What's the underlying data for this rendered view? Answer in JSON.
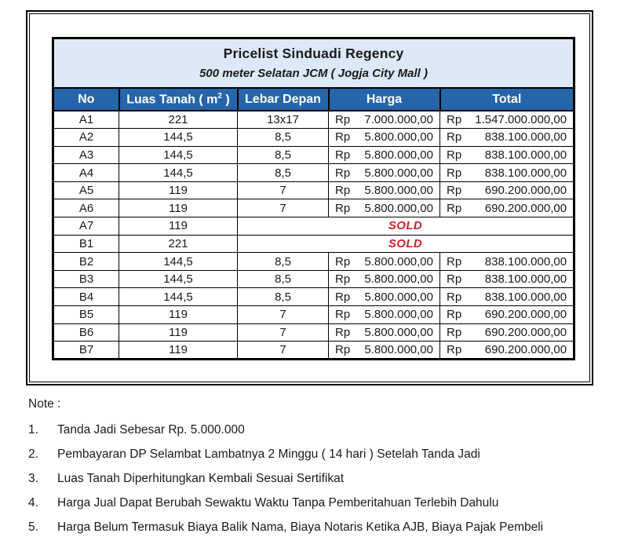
{
  "colors": {
    "header_bg": "#2565a9",
    "title_bg": "#dce8f6",
    "sold_red": "#ce2127",
    "border_color": "#000000",
    "text_color": "#1a1a1a"
  },
  "table": {
    "title": "Pricelist Sinduadi Regency",
    "subtitle": "500 meter Selatan JCM ( Jogja City Mall )",
    "columns": [
      {
        "pre": "No"
      },
      {
        "pre": "Luas Tanah ( m",
        "sup": "2",
        "post": " )"
      },
      {
        "pre": "Lebar Depan"
      },
      {
        "pre": "Harga"
      },
      {
        "pre": "Total"
      }
    ],
    "rows": [
      {
        "no": "A1",
        "luas": "221",
        "lebar": "13x17",
        "harga": {
          "cur": "Rp",
          "amount": "7.000.000,00"
        },
        "total": {
          "cur": "Rp",
          "amount": "1.547.000.000,00"
        }
      },
      {
        "no": "A2",
        "luas": "144,5",
        "lebar": "8,5",
        "harga": {
          "cur": "Rp",
          "amount": "5.800.000,00"
        },
        "total": {
          "cur": "Rp",
          "amount": "838.100.000,00"
        }
      },
      {
        "no": "A3",
        "luas": "144,5",
        "lebar": "8,5",
        "harga": {
          "cur": "Rp",
          "amount": "5.800.000,00"
        },
        "total": {
          "cur": "Rp",
          "amount": "838.100.000,00"
        }
      },
      {
        "no": "A4",
        "luas": "144,5",
        "lebar": "8,5",
        "harga": {
          "cur": "Rp",
          "amount": "5.800.000,00"
        },
        "total": {
          "cur": "Rp",
          "amount": "838.100.000,00"
        }
      },
      {
        "no": "A5",
        "luas": "119",
        "lebar": "7",
        "harga": {
          "cur": "Rp",
          "amount": "5.800.000,00"
        },
        "total": {
          "cur": "Rp",
          "amount": "690.200.000,00"
        }
      },
      {
        "no": "A6",
        "luas": "119",
        "lebar": "7",
        "harga": {
          "cur": "Rp",
          "amount": "5.800.000,00"
        },
        "total": {
          "cur": "Rp",
          "amount": "690.200.000,00"
        }
      },
      {
        "no": "A7",
        "luas": "119",
        "status": "SOLD"
      },
      {
        "no": "B1",
        "luas": "221",
        "status": "SOLD"
      },
      {
        "no": "B2",
        "luas": "144,5",
        "lebar": "8,5",
        "harga": {
          "cur": "Rp",
          "amount": "5.800.000,00"
        },
        "total": {
          "cur": "Rp",
          "amount": "838.100.000,00"
        }
      },
      {
        "no": "B3",
        "luas": "144,5",
        "lebar": "8,5",
        "harga": {
          "cur": "Rp",
          "amount": "5.800.000,00"
        },
        "total": {
          "cur": "Rp",
          "amount": "838.100.000,00"
        }
      },
      {
        "no": "B4",
        "luas": "144,5",
        "lebar": "8,5",
        "harga": {
          "cur": "Rp",
          "amount": "5.800.000,00"
        },
        "total": {
          "cur": "Rp",
          "amount": "838.100.000,00"
        }
      },
      {
        "no": "B5",
        "luas": "119",
        "lebar": "7",
        "harga": {
          "cur": "Rp",
          "amount": "5.800.000,00"
        },
        "total": {
          "cur": "Rp",
          "amount": "690.200.000,00"
        }
      },
      {
        "no": "B6",
        "luas": "119",
        "lebar": "7",
        "harga": {
          "cur": "Rp",
          "amount": "5.800.000,00"
        },
        "total": {
          "cur": "Rp",
          "amount": "690.200.000,00"
        }
      },
      {
        "no": "B7",
        "luas": "119",
        "lebar": "7",
        "harga": {
          "cur": "Rp",
          "amount": "5.800.000,00"
        },
        "total": {
          "cur": "Rp",
          "amount": "690.200.000,00"
        }
      }
    ]
  },
  "notes": {
    "heading": "Note :",
    "items": [
      {
        "num": "1.",
        "text": "Tanda Jadi Sebesar Rp. 5.000.000"
      },
      {
        "num": "2.",
        "text": "Pembayaran DP Selambat Lambatnya 2 Minggu ( 14 hari ) Setelah Tanda Jadi"
      },
      {
        "num": "3.",
        "text": "Luas Tanah Diperhitungkan Kembali Sesuai Sertifikat"
      },
      {
        "num": "4.",
        "text": "Harga Jual Dapat Berubah Sewaktu Waktu Tanpa Pemberitahuan Terlebih Dahulu"
      },
      {
        "num": "5.",
        "text": "Harga Belum Termasuk Biaya Balik Nama, Biaya Notaris Ketika AJB, Biaya Pajak Pembeli"
      }
    ]
  }
}
